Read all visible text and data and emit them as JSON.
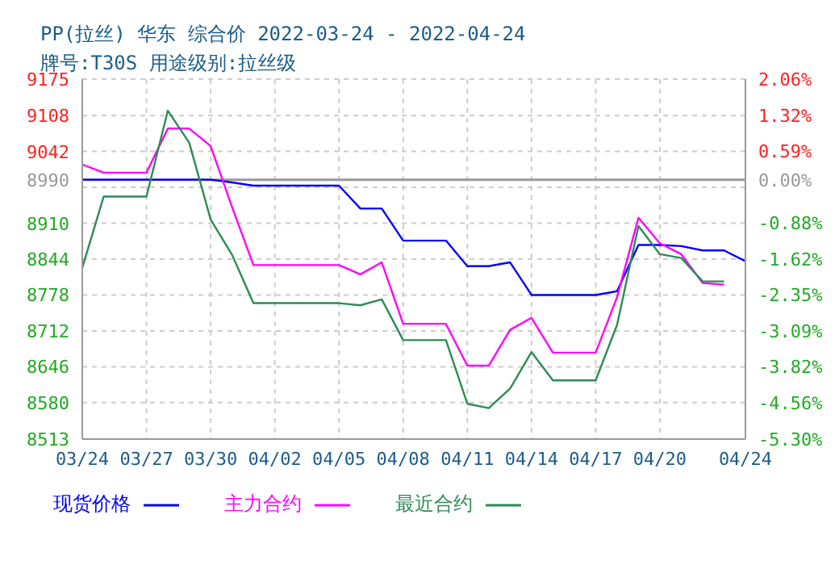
{
  "chart_data": {
    "type": "line",
    "title": "PP(拉丝) 华东 综合价 2022-03-24 - 2022-04-24",
    "subtitle": "牌号:T30S 用途级别:拉丝级",
    "x": [
      "2022-03-24",
      "2022-03-25",
      "2022-03-26",
      "2022-03-27",
      "2022-03-28",
      "2022-03-29",
      "2022-03-30",
      "2022-03-31",
      "2022-04-01",
      "2022-04-02",
      "2022-04-03",
      "2022-04-04",
      "2022-04-05",
      "2022-04-06",
      "2022-04-07",
      "2022-04-08",
      "2022-04-09",
      "2022-04-10",
      "2022-04-11",
      "2022-04-12",
      "2022-04-13",
      "2022-04-14",
      "2022-04-15",
      "2022-04-16",
      "2022-04-17",
      "2022-04-18",
      "2022-04-19",
      "2022-04-20",
      "2022-04-21",
      "2022-04-22",
      "2022-04-23",
      "2022-04-24"
    ],
    "series": [
      {
        "name": "现货价格",
        "color": "#0000ff",
        "values": [
          8990,
          8990,
          8990,
          8990,
          8990,
          8990,
          8990,
          8985,
          8979,
          8979,
          8979,
          8979,
          8979,
          8937,
          8937,
          8878,
          8878,
          8878,
          8831,
          8831,
          8838,
          8778,
          8778,
          8778,
          8778,
          8785,
          8870,
          8870,
          8868,
          8860,
          8860,
          8840
        ]
      },
      {
        "name": "主力合约",
        "color": "#ff00ff",
        "values": [
          9018,
          9003,
          9003,
          9003,
          9084,
          9084,
          9052,
          8940,
          8833,
          8833,
          8833,
          8833,
          8833,
          8816,
          8838,
          8725,
          8725,
          8725,
          8648,
          8648,
          8714,
          8736,
          8672,
          8672,
          8672,
          8774,
          8920,
          8873,
          8853,
          8800,
          8797,
          null
        ]
      },
      {
        "name": "最近合约",
        "color": "#2e8b57",
        "values": [
          8828,
          8959,
          8959,
          8959,
          9117,
          9058,
          8917,
          8852,
          8763,
          8763,
          8763,
          8763,
          8763,
          8759,
          8770,
          8695,
          8695,
          8695,
          8578,
          8570,
          8606,
          8673,
          8621,
          8621,
          8621,
          8723,
          8905,
          8853,
          8846,
          8803,
          8803,
          null
        ]
      }
    ],
    "xlim": [
      "2022-03-24",
      "2022-04-24"
    ],
    "xticks": [
      {
        "value": "2022-03-24",
        "label": "03/24"
      },
      {
        "value": "2022-03-27",
        "label": "03/27"
      },
      {
        "value": "2022-03-30",
        "label": "03/30"
      },
      {
        "value": "2022-04-02",
        "label": "04/02"
      },
      {
        "value": "2022-04-05",
        "label": "04/05"
      },
      {
        "value": "2022-04-08",
        "label": "04/08"
      },
      {
        "value": "2022-04-11",
        "label": "04/11"
      },
      {
        "value": "2022-04-14",
        "label": "04/14"
      },
      {
        "value": "2022-04-17",
        "label": "04/17"
      },
      {
        "value": "2022-04-20",
        "label": "04/20"
      },
      {
        "value": "2022-04-24",
        "label": "04/24"
      }
    ],
    "ylim": [
      8513,
      9175
    ],
    "yticks": [
      8513,
      8580,
      8646,
      8712,
      8778,
      8844,
      8910,
      {
        "value": 8976,
        "label": null
      },
      8990,
      9042,
      9108,
      9175
    ],
    "y2lim": [
      -5.3,
      2.06
    ],
    "y2ticks": [
      {
        "value": -5.3,
        "label": "-5.30%"
      },
      {
        "value": -4.56,
        "label": "-4.56%"
      },
      {
        "value": -3.82,
        "label": "-3.82%"
      },
      {
        "value": -3.09,
        "label": "-3.09%"
      },
      {
        "value": -2.35,
        "label": "-2.35%"
      },
      {
        "value": -1.62,
        "label": "-1.62%"
      },
      {
        "value": -0.88,
        "label": "-0.88%"
      },
      {
        "value": -0.15,
        "label": null
      },
      {
        "value": 0.0,
        "label": "0.00%"
      },
      {
        "value": 0.59,
        "label": "0.59%"
      },
      {
        "value": 1.32,
        "label": "1.32%"
      },
      {
        "value": 2.06,
        "label": "2.06%"
      }
    ],
    "ref_lines": [
      {
        "axis": "y",
        "value": 8990,
        "color": "#999999"
      }
    ],
    "grid": true,
    "legend": "bottom",
    "marker": "none",
    "line_style": "solid"
  }
}
